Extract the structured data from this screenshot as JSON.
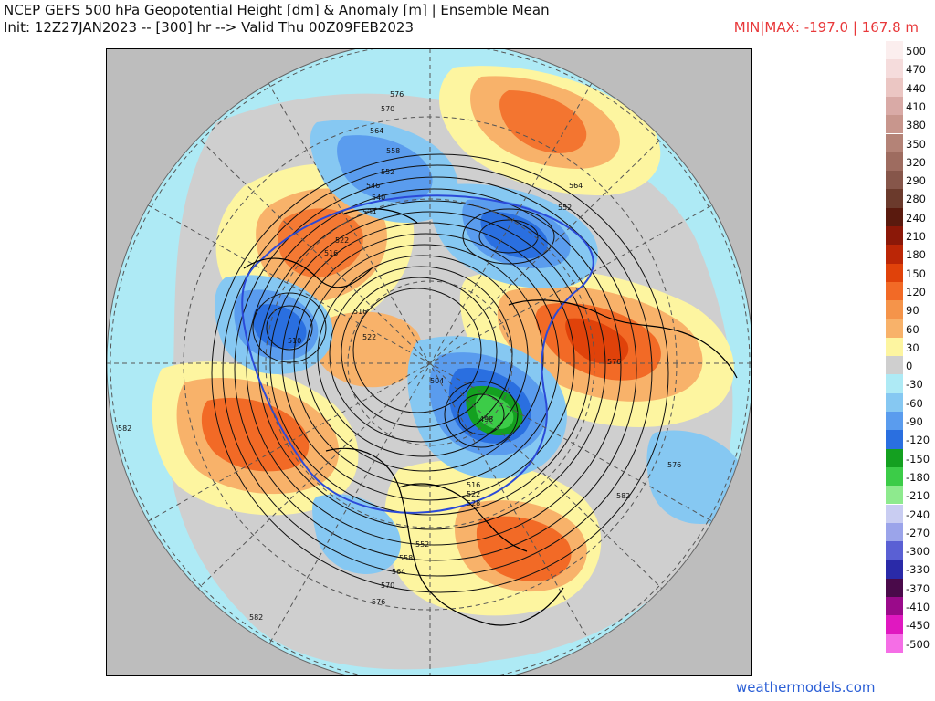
{
  "header": {
    "title": "NCEP GEFS 500 hPa Geopotential Height [dm] & Anomaly [m] | Ensemble Mean",
    "init": "Init: 12Z27JAN2023 -- [300] hr --> Valid Thu 00Z09FEB2023",
    "minmax": "MIN|MAX: -197.0 | 167.8 m"
  },
  "legend": {
    "entries": [
      {
        "label": "500",
        "color": "#fbeeee"
      },
      {
        "label": "470",
        "color": "#f5dcdc"
      },
      {
        "label": "440",
        "color": "#ebc6c3"
      },
      {
        "label": "410",
        "color": "#d9aaa6"
      },
      {
        "label": "380",
        "color": "#c8968d"
      },
      {
        "label": "350",
        "color": "#b48377"
      },
      {
        "label": "320",
        "color": "#9e6c60"
      },
      {
        "label": "290",
        "color": "#86564a"
      },
      {
        "label": "280",
        "color": "#6b3a2c"
      },
      {
        "label": "240",
        "color": "#5a1a0e"
      },
      {
        "label": "210",
        "color": "#8b1808"
      },
      {
        "label": "180",
        "color": "#bb2606"
      },
      {
        "label": "150",
        "color": "#e0420a"
      },
      {
        "label": "120",
        "color": "#f26a26"
      },
      {
        "label": "90",
        "color": "#f5944a"
      },
      {
        "label": "60",
        "color": "#f8b26a"
      },
      {
        "label": "30",
        "color": "#fdf5a0"
      },
      {
        "label": "0",
        "color": "#cfcfcf"
      },
      {
        "label": "-30",
        "color": "#aeeaf5"
      },
      {
        "label": "-60",
        "color": "#86c8f2"
      },
      {
        "label": "-90",
        "color": "#5a9cee"
      },
      {
        "label": "-120",
        "color": "#2a6fe0"
      },
      {
        "label": "-150",
        "color": "#14a020"
      },
      {
        "label": "-180",
        "color": "#3ccc48"
      },
      {
        "label": "-210",
        "color": "#8eea8e"
      },
      {
        "label": "-240",
        "color": "#c9cdf2"
      },
      {
        "label": "-270",
        "color": "#9ba4ea"
      },
      {
        "label": "-300",
        "color": "#5a60d4"
      },
      {
        "label": "-330",
        "color": "#2a2aa8"
      },
      {
        "label": "-370",
        "color": "#4a0a4a"
      },
      {
        "label": "-410",
        "color": "#9a0a8a"
      },
      {
        "label": "-450",
        "color": "#e018c0"
      },
      {
        "label": "-500",
        "color": "#f56ee6"
      }
    ]
  },
  "map": {
    "contour_labels": [
      "576",
      "570",
      "564",
      "558",
      "552",
      "546",
      "540",
      "534",
      "522",
      "516",
      "516",
      "510",
      "522",
      "504",
      "498",
      "582",
      "564",
      "552",
      "576",
      "576",
      "582",
      "582",
      "516",
      "522",
      "528",
      "552",
      "558",
      "564",
      "570",
      "576"
    ]
  },
  "credit": "weathermodels.com"
}
